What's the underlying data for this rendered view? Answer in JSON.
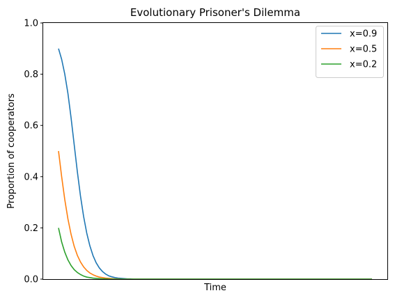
{
  "chart_data": {
    "type": "line",
    "title": "Evolutionary Prisoner's Dilemma",
    "xlabel": "Time",
    "ylabel": "Proportion of cooperators",
    "ylim": [
      0,
      1
    ],
    "yticks": [
      "0.0",
      "0.2",
      "0.4",
      "0.6",
      "0.8",
      "1.0"
    ],
    "x_tick_labels": false,
    "grid": false,
    "legend_position": "top-right",
    "x": [
      0,
      1,
      2,
      3,
      4,
      5,
      6,
      7,
      8,
      9,
      10,
      11,
      12,
      13,
      14,
      15,
      16,
      17,
      18,
      19,
      20,
      21,
      22,
      23,
      24,
      25,
      26,
      27,
      28,
      29,
      30,
      31,
      32,
      33,
      34,
      35,
      36,
      37,
      38,
      39,
      40,
      41,
      42,
      43,
      44,
      45,
      46,
      47,
      48,
      49,
      50,
      51,
      52,
      53,
      54,
      55,
      56,
      57,
      58,
      59,
      60,
      61,
      62,
      63,
      64,
      65,
      66,
      67,
      68,
      69,
      70,
      71,
      72,
      73,
      74,
      75,
      76,
      77,
      78,
      79,
      80,
      81,
      82,
      83,
      84,
      85,
      86,
      87,
      88,
      89,
      90,
      91,
      92,
      93,
      94,
      95,
      96,
      97,
      98,
      99,
      100
    ],
    "series": [
      {
        "name": "x=0.9",
        "color": "#1f77b4",
        "values": [
          0.9,
          0.858,
          0.8,
          0.725,
          0.63,
          0.525,
          0.42,
          0.325,
          0.245,
          0.18,
          0.13,
          0.092,
          0.064,
          0.044,
          0.03,
          0.02,
          0.013,
          0.009,
          0.006,
          0.004,
          0.003,
          0.002,
          0.001,
          0.001,
          0,
          0,
          0,
          0,
          0,
          0,
          0,
          0,
          0,
          0,
          0,
          0,
          0,
          0,
          0,
          0,
          0,
          0,
          0,
          0,
          0,
          0,
          0,
          0,
          0,
          0,
          0,
          0,
          0,
          0,
          0,
          0,
          0,
          0,
          0,
          0,
          0,
          0,
          0,
          0,
          0,
          0,
          0,
          0,
          0,
          0,
          0,
          0,
          0,
          0,
          0,
          0,
          0,
          0,
          0,
          0,
          0,
          0,
          0,
          0,
          0,
          0,
          0,
          0,
          0,
          0,
          0,
          0,
          0,
          0,
          0,
          0,
          0,
          0,
          0,
          0,
          0
        ]
      },
      {
        "name": "x=0.5",
        "color": "#ff7f0e",
        "values": [
          0.5,
          0.4,
          0.31,
          0.235,
          0.175,
          0.128,
          0.093,
          0.067,
          0.048,
          0.034,
          0.024,
          0.017,
          0.012,
          0.008,
          0.006,
          0.004,
          0.003,
          0.002,
          0.001,
          0.001,
          0,
          0,
          0,
          0,
          0,
          0,
          0,
          0,
          0,
          0,
          0,
          0,
          0,
          0,
          0,
          0,
          0,
          0,
          0,
          0,
          0,
          0,
          0,
          0,
          0,
          0,
          0,
          0,
          0,
          0,
          0,
          0,
          0,
          0,
          0,
          0,
          0,
          0,
          0,
          0,
          0,
          0,
          0,
          0,
          0,
          0,
          0,
          0,
          0,
          0,
          0,
          0,
          0,
          0,
          0,
          0,
          0,
          0,
          0,
          0,
          0,
          0,
          0,
          0,
          0,
          0,
          0,
          0,
          0,
          0,
          0,
          0,
          0,
          0,
          0,
          0,
          0,
          0,
          0,
          0,
          0
        ]
      },
      {
        "name": "x=0.2",
        "color": "#2ca02c",
        "values": [
          0.2,
          0.145,
          0.105,
          0.075,
          0.053,
          0.037,
          0.026,
          0.018,
          0.012,
          0.008,
          0.006,
          0.004,
          0.003,
          0.002,
          0.001,
          0.001,
          0,
          0,
          0,
          0,
          0,
          0,
          0,
          0,
          0,
          0,
          0,
          0,
          0,
          0,
          0,
          0,
          0,
          0,
          0,
          0,
          0,
          0,
          0,
          0,
          0,
          0,
          0,
          0,
          0,
          0,
          0,
          0,
          0,
          0,
          0,
          0,
          0,
          0,
          0,
          0,
          0,
          0,
          0,
          0,
          0,
          0,
          0,
          0,
          0,
          0,
          0,
          0,
          0,
          0,
          0,
          0,
          0,
          0,
          0,
          0,
          0,
          0,
          0,
          0,
          0,
          0,
          0,
          0,
          0,
          0,
          0,
          0,
          0,
          0,
          0,
          0,
          0,
          0,
          0,
          0,
          0,
          0,
          0,
          0,
          0
        ]
      }
    ]
  }
}
